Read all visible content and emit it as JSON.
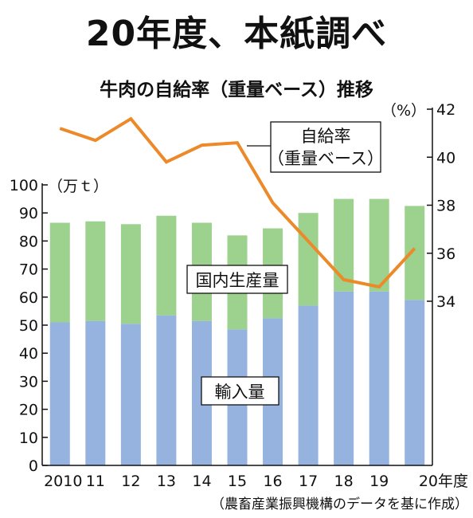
{
  "headline": "20年度、本紙調べ",
  "chart_data": {
    "type": "bar",
    "title": "牛肉の自給率（重量ベース）推移",
    "categories": [
      "2010",
      "11",
      "12",
      "13",
      "14",
      "15",
      "16",
      "17",
      "18",
      "19",
      "20年度"
    ],
    "y_left": {
      "unit": "（万ｔ）",
      "ylim": [
        0,
        100
      ],
      "ticks": [
        0,
        10,
        20,
        30,
        40,
        50,
        60,
        70,
        80,
        90,
        100
      ]
    },
    "y_right": {
      "unit": "（%）",
      "ylim": [
        34,
        42
      ],
      "ticks": [
        34,
        36,
        38,
        40,
        42
      ]
    },
    "series": [
      {
        "name": "輸入量",
        "kind": "bar",
        "color": "#95b3de",
        "values": [
          51,
          51.5,
          50.5,
          53.5,
          51.5,
          48.5,
          52.5,
          57,
          62,
          62,
          59
        ]
      },
      {
        "name": "国内生産量",
        "kind": "bar",
        "color": "#9dd18e",
        "values": [
          35.5,
          35.5,
          35.5,
          35.5,
          35,
          33.5,
          32,
          33,
          33,
          33,
          33.5
        ]
      },
      {
        "name": "自給率（重量ベース）",
        "label_lines": [
          "自給率",
          "（重量ベース）"
        ],
        "kind": "line",
        "axis": "right",
        "color": "#ec8a2a",
        "values": [
          41.2,
          40.7,
          41.6,
          39.8,
          40.5,
          40.6,
          38.1,
          36.5,
          34.9,
          34.6,
          36.2
        ]
      }
    ],
    "source": "（農畜産業振興機構のデータを基に作成）"
  }
}
